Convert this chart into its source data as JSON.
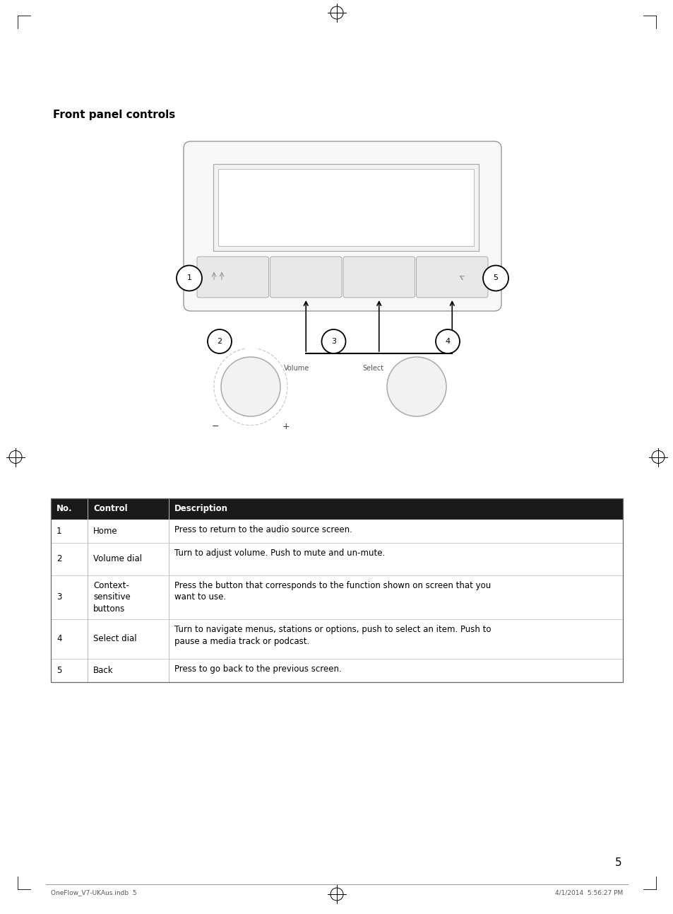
{
  "title": "Front panel controls",
  "page_number": "5",
  "footer_left": "OneFlow_V7-UKAus.indb  5",
  "footer_right": "4/1/2014  5:56:27 PM",
  "table_header": [
    "No.",
    "Control",
    "Description"
  ],
  "table_header_bg": "#1a1a1a",
  "table_header_fg": "#ffffff",
  "table_rows": [
    [
      "1",
      "Home",
      "Press to return to the audio source screen."
    ],
    [
      "2",
      "Volume dial",
      "Turn to adjust volume. Push to mute and un-mute."
    ],
    [
      "3",
      "Context-\nsensitive\nbuttons",
      "Press the button that corresponds to the function shown on screen that you\nwant to use."
    ],
    [
      "4",
      "Select dial",
      "Turn to navigate menus, stations or options, push to select an item. Push to\npause a media track or podcast."
    ],
    [
      "5",
      "Back",
      "Press to go back to the previous screen."
    ]
  ],
  "bg_color": "#ffffff",
  "line_color": "#aaaaaa",
  "dark_line": "#555555",
  "black": "#000000"
}
